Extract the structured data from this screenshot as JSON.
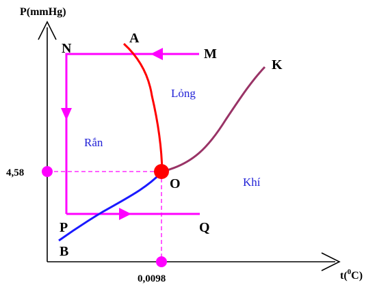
{
  "axes": {
    "y_label": "P(mmHg)",
    "x_label_prefix": "t(",
    "x_label_sup": "0",
    "x_label_suffix": "C)",
    "y_tick": "4,58",
    "x_tick": "0,0098"
  },
  "points": {
    "N": "N",
    "M": "M",
    "A": "A",
    "K": "K",
    "O": "O",
    "P": "P",
    "Q": "Q",
    "B": "B"
  },
  "regions": {
    "liquid": "Lỏng",
    "solid": "Rắn",
    "gas": "Khí"
  },
  "colors": {
    "magenta": "#ff00ff",
    "fusion_curve": "#ff0000",
    "vapor_curve": "#993366",
    "sublimation_curve": "#1a1aff",
    "region_text": "#1f1fd6",
    "triple_point": "#ff0000"
  }
}
